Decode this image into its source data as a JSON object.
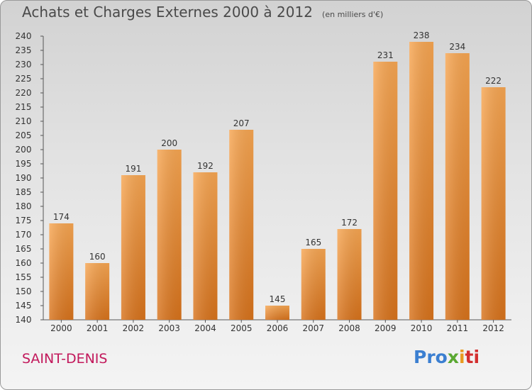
{
  "chart_data": {
    "type": "bar",
    "title": "Achats et Charges Externes 2000 à 2012",
    "subtitle": "(en milliers d'€)",
    "categories": [
      "2000",
      "2001",
      "2002",
      "2003",
      "2004",
      "2005",
      "2006",
      "2007",
      "2008",
      "2009",
      "2010",
      "2011",
      "2012"
    ],
    "values": [
      174,
      160,
      191,
      200,
      192,
      207,
      145,
      165,
      172,
      231,
      238,
      234,
      222
    ],
    "ylim": [
      140,
      240
    ],
    "ytick_step": 5,
    "grid": false,
    "bar_color": "#f0963a"
  },
  "footer": {
    "place": "SAINT-DENIS",
    "logo": "Proxiti",
    "logo_parts": [
      "Pro",
      "x",
      "i",
      "ti"
    ],
    "place_color": "#c2185b"
  }
}
